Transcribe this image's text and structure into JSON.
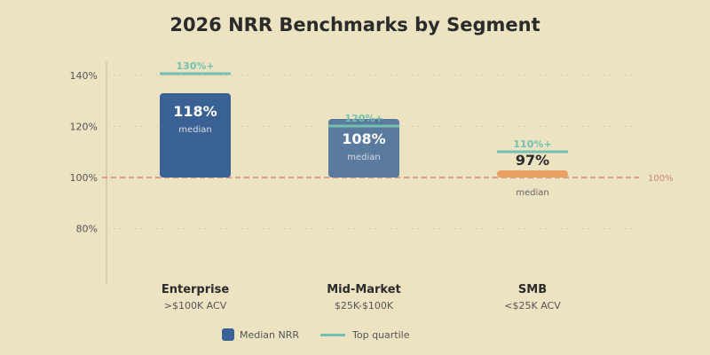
{
  "chart_data": {
    "type": "bar",
    "title": "2026 NRR Benchmarks by Segment",
    "yticks": [
      "140%",
      "120%",
      "100%",
      "80%"
    ],
    "ytick_values": [
      140,
      120,
      100,
      80
    ],
    "reference_line": {
      "value": 100,
      "label": "100%",
      "color": "#d08a70"
    },
    "categories": [
      {
        "name": "Enterprise",
        "sub": ">$100K ACV"
      },
      {
        "name": "Mid-Market",
        "sub": "$25K-$100K"
      },
      {
        "name": "SMB",
        "sub": "<$25K ACV"
      }
    ],
    "series": [
      {
        "name": "Median NRR",
        "values": [
          118,
          108,
          97
        ],
        "labels": [
          "118%",
          "108%",
          "97%"
        ],
        "sublabel": "median",
        "colors": [
          "#3a6194",
          "#5a7a9e",
          "#e8a065"
        ]
      },
      {
        "name": "Top quartile",
        "values": [
          130,
          120,
          110
        ],
        "labels": [
          "130%+",
          "120%+",
          "110%+"
        ],
        "color": "#74c0b0"
      }
    ],
    "grid": true,
    "legend": "bottom"
  }
}
